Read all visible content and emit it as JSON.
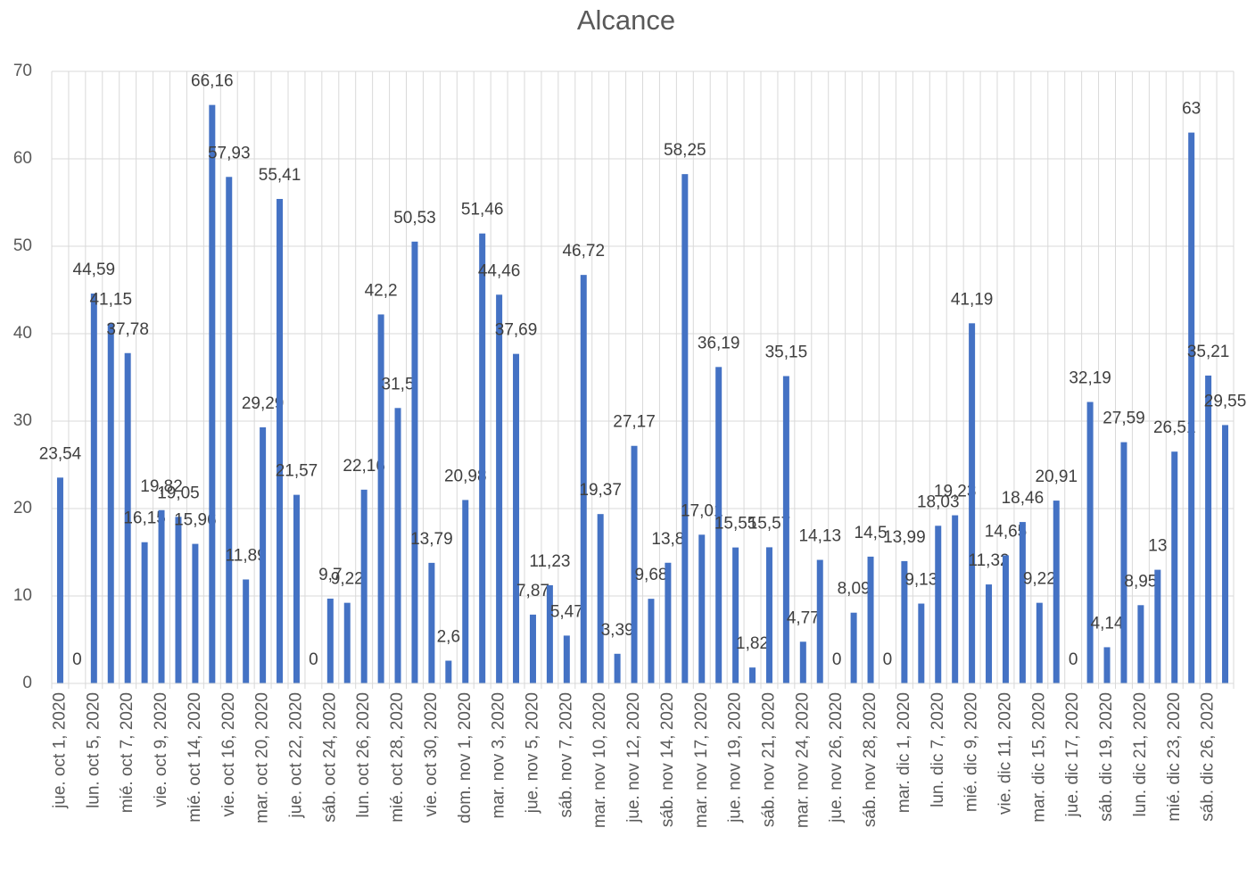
{
  "chart_data": {
    "type": "bar",
    "title": "Alcance",
    "categories": [
      "jue. oct 1, 2020",
      null,
      "lun. oct 5, 2020",
      null,
      "mié. oct 7, 2020",
      null,
      "vie. oct 9, 2020",
      null,
      "mié. oct 14, 2020",
      null,
      "vie. oct 16, 2020",
      null,
      "mar. oct 20, 2020",
      null,
      "jue. oct 22, 2020",
      null,
      "sáb. oct 24, 2020",
      null,
      "lun. oct 26, 2020",
      null,
      "mié. oct 28, 2020",
      null,
      "vie. oct 30, 2020",
      null,
      "dom. nov 1, 2020",
      null,
      "mar. nov 3, 2020",
      null,
      "jue. nov 5, 2020",
      null,
      "sáb. nov 7, 2020",
      null,
      "mar. nov 10, 2020",
      null,
      "jue. nov 12, 2020",
      null,
      "sáb. nov 14, 2020",
      null,
      "mar. nov 17, 2020",
      null,
      "jue. nov 19, 2020",
      null,
      "sáb. nov 21, 2020",
      null,
      "mar. nov 24, 2020",
      null,
      "jue. nov 26, 2020",
      null,
      "sáb. nov 28, 2020",
      null,
      "mar. dic 1, 2020",
      null,
      "lun. dic 7, 2020",
      null,
      "mié. dic 9, 2020",
      null,
      "vie. dic 11, 2020",
      null,
      "mar. dic 15, 2020",
      null,
      "jue. dic 17, 2020",
      null,
      "sáb. dic 19, 2020",
      null,
      "lun. dic 21, 2020",
      null,
      "mié. dic 23, 2020",
      null,
      "sáb. dic 26, 2020",
      null
    ],
    "values": [
      23.54,
      0,
      44.59,
      41.15,
      37.78,
      16.15,
      19.82,
      19.05,
      15.96,
      66.16,
      57.93,
      11.89,
      29.29,
      55.41,
      21.57,
      0,
      9.7,
      9.22,
      22.16,
      42.2,
      31.5,
      50.53,
      13.79,
      2.6,
      20.98,
      51.46,
      44.46,
      37.69,
      7.87,
      11.23,
      5.47,
      46.72,
      19.37,
      3.39,
      27.17,
      9.68,
      13.8,
      58.25,
      17.01,
      36.19,
      15.55,
      1.82,
      15.57,
      35.15,
      4.77,
      14.13,
      0,
      8.09,
      14.5,
      0,
      13.99,
      9.13,
      18.03,
      19.23,
      41.19,
      11.32,
      14.65,
      18.46,
      9.22,
      20.91,
      0,
      32.19,
      4.14,
      27.59,
      8.95,
      13,
      26.51,
      63,
      35.21,
      29.55
    ],
    "value_labels": [
      "23,54",
      "0",
      "44,59",
      "41,15",
      "37,78",
      "16,15",
      "19,82",
      "19,05",
      "15,96",
      "66,16",
      "57,93",
      "11,89",
      "29,29",
      "55,41",
      "21,57",
      "0",
      "9,7",
      "9,22",
      "22,16",
      "42,2",
      "31,5",
      "50,53",
      "13,79",
      "2,6",
      "20,98",
      "51,46",
      "44,46",
      "37,69",
      "7,87",
      "11,23",
      "5,47",
      "46,72",
      "19,37",
      "3,39",
      "27,17",
      "9,68",
      "13,8",
      "58,25",
      "17,01",
      "36,19",
      "15,55",
      "1,82",
      "15,57",
      "35,15",
      "4,77",
      "14,13",
      "0",
      "8,09",
      "14,5",
      "0",
      "13,99",
      "9,13",
      "18,03",
      "19,23",
      "41,19",
      "11,32",
      "14,65",
      "18,46",
      "9,22",
      "20,91",
      "0",
      "32,19",
      "4,14",
      "27,59",
      "8,95",
      "13",
      "26,51",
      "63",
      "35,21",
      "29,55"
    ],
    "color": "#4472c4",
    "ylim": [
      0,
      70
    ],
    "yticks": [
      0,
      10,
      20,
      30,
      40,
      50,
      60,
      70
    ],
    "grid": true
  }
}
